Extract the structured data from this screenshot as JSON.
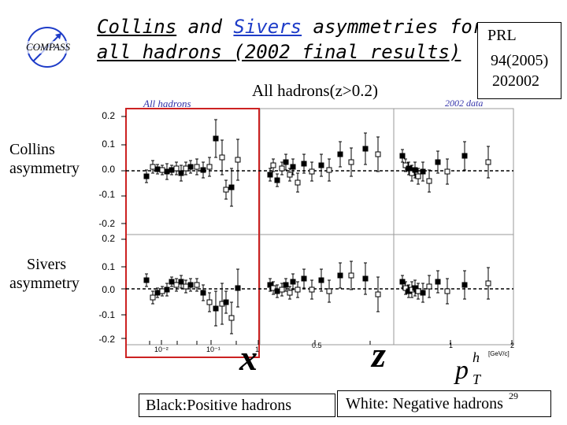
{
  "title": {
    "word_collins": "Collins",
    "word_and": " and ",
    "word_sivers": "Sivers",
    "line1_rest": " asymmetries for",
    "line2": "all hadrons (2002 final results)"
  },
  "logo_text": "COMPASS",
  "reference": {
    "line1": "PRL",
    "line2": "94(2005)",
    "line3": "202002"
  },
  "subtitle": "All hadrons(z>0.2)",
  "panel_labels": {
    "left": "All hadrons",
    "right": "2002 data"
  },
  "row_labels": {
    "collins": [
      "Collins",
      "asymmetry"
    ],
    "sivers": [
      "Sivers",
      "asymmetry"
    ]
  },
  "y_ticks": {
    "collins": [
      "0.2",
      "0.1",
      "0.0",
      "-0.1",
      "-0.2"
    ],
    "sivers": [
      "0.2",
      "0.1",
      "0.0",
      "-0.1",
      "-0.2"
    ]
  },
  "x_ticks": {
    "x_panel": [
      "10⁻²",
      "10⁻¹",
      "1"
    ],
    "z_panel": [
      "0.5"
    ],
    "pt_panel": [
      "1",
      "2"
    ],
    "pt_unit": "[GeV/c]"
  },
  "axis_labels": {
    "x": "x",
    "z": "z",
    "pt_base": "p",
    "pt_sup": "h",
    "pt_sub": "T"
  },
  "legend": {
    "black": "Black:Positive  hadrons",
    "white": "White: Negative  hadrons"
  },
  "page_number": "29",
  "colors": {
    "title_highlight": "#1e3cc8",
    "panel_label": "#3333aa",
    "highlight_frame": "#cc2222",
    "logo_blue": "#1e3cc8"
  }
}
